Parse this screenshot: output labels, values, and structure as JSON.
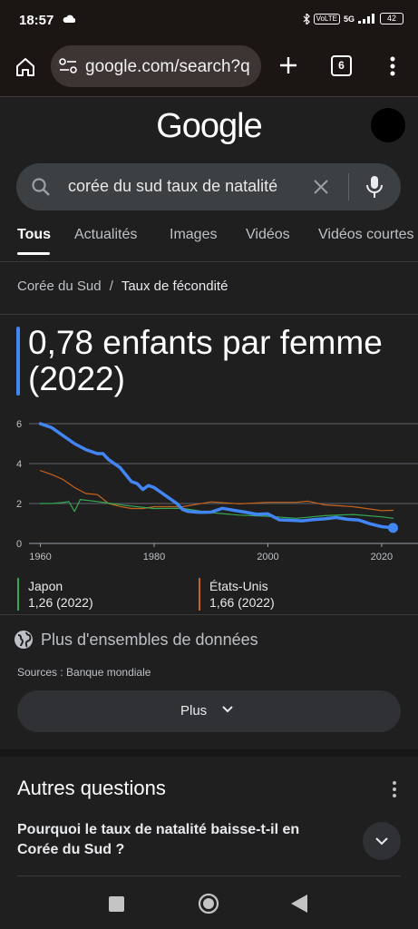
{
  "status": {
    "time": "18:57",
    "network": "5G",
    "volte": "VoLTE",
    "battery": "42"
  },
  "browser": {
    "url": "google.com/search?q",
    "tab_count": "6"
  },
  "google": {
    "logo": "Google",
    "query": "corée du sud taux de natalité"
  },
  "tabs": [
    "Tous",
    "Actualités",
    "Images",
    "Vidéos",
    "Vidéos courtes"
  ],
  "breadcrumb": {
    "parent": "Corée du Sud",
    "separator": "/",
    "current": "Taux de fécondité"
  },
  "answer": {
    "headline": "0,78 enfants par femme (2022)",
    "accent_color": "#4285f4"
  },
  "chart_data": {
    "type": "line",
    "x_ticks": [
      1960,
      1980,
      2000,
      2020
    ],
    "y_ticks": [
      0,
      2,
      4,
      6
    ],
    "xlim": [
      1958,
      2024
    ],
    "ylim": [
      0,
      6
    ],
    "grid": true,
    "series": [
      {
        "name": "Corée du Sud",
        "color": "#4285f4",
        "x": [
          1960,
          1962,
          1964,
          1966,
          1968,
          1970,
          1971,
          1972,
          1974,
          1976,
          1977,
          1978,
          1979,
          1980,
          1982,
          1984,
          1985,
          1986,
          1988,
          1990,
          1992,
          1994,
          1996,
          1998,
          2000,
          2002,
          2004,
          2006,
          2008,
          2010,
          2012,
          2014,
          2016,
          2018,
          2020,
          2022
        ],
        "y": [
          6.0,
          5.8,
          5.4,
          5.0,
          4.7,
          4.5,
          4.5,
          4.2,
          3.8,
          3.1,
          3.0,
          2.7,
          2.9,
          2.8,
          2.4,
          2.0,
          1.7,
          1.6,
          1.56,
          1.57,
          1.76,
          1.66,
          1.57,
          1.46,
          1.48,
          1.18,
          1.16,
          1.13,
          1.19,
          1.23,
          1.3,
          1.21,
          1.17,
          0.98,
          0.84,
          0.78
        ]
      },
      {
        "name": "Japon",
        "color": "#34a853",
        "x": [
          1960,
          1962,
          1964,
          1965,
          1966,
          1967,
          1970,
          1975,
          1980,
          1985,
          1990,
          1995,
          2000,
          2005,
          2010,
          2015,
          2020,
          2022
        ],
        "y": [
          2.0,
          2.0,
          2.05,
          2.1,
          1.6,
          2.2,
          2.1,
          1.9,
          1.75,
          1.76,
          1.54,
          1.42,
          1.36,
          1.26,
          1.39,
          1.45,
          1.33,
          1.26
        ]
      },
      {
        "name": "États-Unis",
        "color": "#c5621b",
        "x": [
          1960,
          1962,
          1964,
          1966,
          1968,
          1970,
          1972,
          1974,
          1976,
          1978,
          1980,
          1985,
          1990,
          1995,
          2000,
          2005,
          2007,
          2010,
          2015,
          2020,
          2022
        ],
        "y": [
          3.65,
          3.45,
          3.2,
          2.8,
          2.5,
          2.45,
          2.0,
          1.85,
          1.75,
          1.75,
          1.84,
          1.84,
          2.08,
          1.98,
          2.06,
          2.06,
          2.12,
          1.93,
          1.84,
          1.64,
          1.66
        ]
      }
    ],
    "end_marker_color": "#4285f4"
  },
  "legend": [
    {
      "name": "Japon",
      "value": "1,26 (2022)",
      "color": "#34a853"
    },
    {
      "name": "États-Unis",
      "value": "1,66 (2022)",
      "color": "#c5621b"
    }
  ],
  "datasets_link": "Plus d'ensembles de données",
  "sources": "Sources : Banque mondiale",
  "more_button": "Plus",
  "questions": {
    "title": "Autres questions",
    "items": [
      "Pourquoi le taux de natalité baisse-t-il en Corée du Sud ?"
    ]
  },
  "icons": [
    "home-icon",
    "site-settings-icon",
    "new-tab-icon",
    "tabs-icon",
    "menu-icon",
    "search-icon",
    "clear-icon",
    "mic-icon",
    "globe-icon",
    "chevron-down-icon",
    "kebab-icon",
    "recents-icon",
    "home-nav-icon",
    "back-icon"
  ]
}
